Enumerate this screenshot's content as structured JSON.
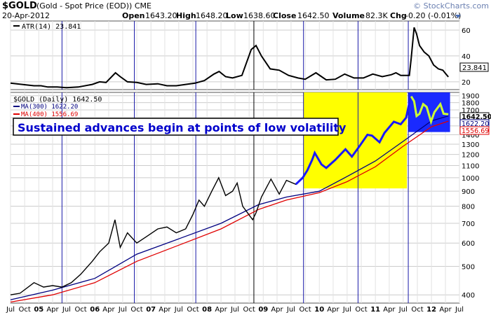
{
  "header": {
    "symbol": "$GOLD",
    "description": "(Gold - Spot Price (EOD)) CME",
    "watermark": "© StockCharts.com",
    "date": "20-Apr-2012",
    "quote": {
      "open_label": "Open",
      "open": "1643.20",
      "high_label": "High",
      "high": "1648.20",
      "low_label": "Low",
      "low": "1638.60",
      "close_label": "Close",
      "close": "1642.50",
      "volume_label": "Volume",
      "volume": "82.3K",
      "chg_label": "Chg",
      "chg": "-0.20 (-0.01%)"
    }
  },
  "annotation": "Sustained advances begin at points of low volatility",
  "colors": {
    "price": "#000000",
    "up_candle": "#000000",
    "down_candle": "#cc0000",
    "highlight_price": "#1a1aff",
    "highlight_price_late": "#ccff33",
    "ma300": "#000080",
    "ma400": "#e00000",
    "yellow_box": "#ffff00",
    "blue_box": "#1a2aff",
    "vertical_lines": "#1a1aa8",
    "grid": "#cccccc",
    "annotation_text": "#0000cc",
    "atr_line": "#000000"
  },
  "chart_data": [
    {
      "type": "line",
      "panel": "upper",
      "legend": "ATR(14) 23.841",
      "last_value_tag": "23.841",
      "ylim": [
        14,
        67
      ],
      "yticks": [
        20,
        40,
        60
      ],
      "series": [
        {
          "name": "ATR(14)",
          "x": [
            "2004-07-01",
            "2004-09-15",
            "2004-12-01",
            "2005-01-15",
            "2005-03-01",
            "2005-05-01",
            "2005-07-01",
            "2005-09-15",
            "2005-12-15",
            "2006-02-01",
            "2006-03-15",
            "2006-05-15",
            "2006-06-15",
            "2006-08-01",
            "2006-10-01",
            "2006-12-01",
            "2007-02-15",
            "2007-04-15",
            "2007-06-15",
            "2007-08-15",
            "2007-10-15",
            "2007-12-15",
            "2008-02-15",
            "2008-03-20",
            "2008-05-01",
            "2008-06-15",
            "2008-08-15",
            "2008-10-15",
            "2008-11-15",
            "2008-12-20",
            "2009-02-15",
            "2009-04-15",
            "2009-06-15",
            "2009-08-15",
            "2009-10-01",
            "2009-12-10",
            "2010-02-15",
            "2010-04-15",
            "2010-06-15",
            "2010-08-15",
            "2010-10-15",
            "2010-12-15",
            "2011-02-15",
            "2011-04-15",
            "2011-05-15",
            "2011-06-15",
            "2011-08-10",
            "2011-08-22",
            "2011-09-10",
            "2011-09-26",
            "2011-10-15",
            "2011-11-15",
            "2011-12-15",
            "2012-01-15",
            "2012-02-15",
            "2012-03-15",
            "2012-04-20"
          ],
          "values": [
            19,
            18,
            17,
            17,
            16,
            16,
            15.5,
            16,
            18,
            20,
            19.5,
            27,
            24,
            20,
            19.5,
            18,
            18.5,
            17,
            17,
            18,
            19,
            21,
            26,
            28,
            24,
            23,
            25,
            45,
            48,
            40,
            30,
            29,
            25,
            23,
            22,
            27,
            21.5,
            22,
            26,
            23,
            23,
            26,
            24,
            25.5,
            27,
            25,
            25,
            38,
            62,
            57,
            48,
            43,
            40,
            33,
            30,
            29,
            23.8
          ]
        }
      ]
    },
    {
      "type": "line",
      "panel": "lower",
      "title": "$GOLD (Daily) 1642.50",
      "scale": "log",
      "ylim": [
        375,
        1950
      ],
      "yticks": [
        400,
        500,
        600,
        700,
        800,
        900,
        1000,
        1100,
        1200,
        1300,
        1400,
        1500,
        1600,
        1700,
        1800,
        1900
      ],
      "x_tick_labels": [
        "Jul",
        "Oct",
        "05",
        "Apr",
        "Jul",
        "Oct",
        "06",
        "Apr",
        "Jul",
        "Oct",
        "07",
        "Apr",
        "Jul",
        "Oct",
        "08",
        "Apr",
        "Jul",
        "Oct",
        "09",
        "Apr",
        "Jul",
        "Oct",
        "10",
        "Apr",
        "Jul",
        "Oct",
        "11",
        "Apr",
        "Jul",
        "Oct",
        "12",
        "Apr",
        "Jul"
      ],
      "xlim": [
        "2004-07-01",
        "2012-07-01"
      ],
      "value_tags": [
        "1642.50",
        "1622.20",
        "1556.69"
      ],
      "series": [
        {
          "name": "$GOLD",
          "x": [
            "2004-07-01",
            "2004-09-01",
            "2004-12-01",
            "2005-02-01",
            "2005-04-01",
            "2005-06-01",
            "2005-08-01",
            "2005-10-01",
            "2005-12-15",
            "2006-02-01",
            "2006-04-01",
            "2006-05-12",
            "2006-06-15",
            "2006-08-01",
            "2006-10-01",
            "2006-12-01",
            "2007-02-15",
            "2007-04-15",
            "2007-06-15",
            "2007-08-15",
            "2007-10-01",
            "2007-11-10",
            "2007-12-15",
            "2008-02-01",
            "2008-03-17",
            "2008-05-01",
            "2008-06-15",
            "2008-07-15",
            "2008-08-20",
            "2008-10-24",
            "2008-11-15",
            "2008-12-20",
            "2009-02-20",
            "2009-04-15",
            "2009-06-01",
            "2009-08-01",
            "2009-09-15",
            "2009-10-15",
            "2009-11-15",
            "2009-12-02",
            "2010-01-15",
            "2010-02-15",
            "2010-04-15",
            "2010-06-20",
            "2010-08-01",
            "2010-09-15",
            "2010-11-10",
            "2010-12-10",
            "2011-01-28",
            "2011-03-01",
            "2011-05-01",
            "2011-06-15",
            "2011-07-20",
            "2011-08-10",
            "2011-08-22",
            "2011-09-10",
            "2011-09-26",
            "2011-10-15",
            "2011-11-08",
            "2011-12-01",
            "2011-12-29",
            "2012-01-20",
            "2012-02-28",
            "2012-03-20",
            "2012-04-20"
          ],
          "values": [
            400,
            405,
            440,
            425,
            430,
            425,
            440,
            470,
            520,
            560,
            600,
            720,
            580,
            650,
            600,
            630,
            670,
            680,
            650,
            670,
            750,
            840,
            800,
            900,
            1000,
            870,
            900,
            960,
            800,
            720,
            760,
            860,
            990,
            880,
            980,
            950,
            1000,
            1060,
            1150,
            1215,
            1110,
            1080,
            1150,
            1250,
            1180,
            1270,
            1400,
            1390,
            1320,
            1420,
            1550,
            1520,
            1600,
            1800,
            1890,
            1820,
            1620,
            1650,
            1780,
            1740,
            1550,
            1670,
            1780,
            1650,
            1642.5
          ]
        },
        {
          "name": "MA(300) 1622.20",
          "x": [
            "2004-07-01",
            "2005-04-01",
            "2006-01-01",
            "2006-10-01",
            "2007-07-01",
            "2008-04-01",
            "2008-12-01",
            "2009-06-01",
            "2010-01-01",
            "2010-07-01",
            "2011-01-01",
            "2011-07-01",
            "2012-01-01",
            "2012-04-20"
          ],
          "values": [
            385,
            415,
            455,
            550,
            620,
            700,
            810,
            860,
            900,
            1010,
            1140,
            1330,
            1560,
            1622.2
          ]
        },
        {
          "name": "MA(400) 1556.69",
          "x": [
            "2004-07-01",
            "2005-04-01",
            "2006-01-01",
            "2006-10-01",
            "2007-07-01",
            "2008-04-01",
            "2008-12-01",
            "2009-06-01",
            "2010-01-01",
            "2010-07-01",
            "2011-01-01",
            "2011-07-01",
            "2012-01-01",
            "2012-04-20"
          ],
          "values": [
            378,
            400,
            440,
            520,
            590,
            670,
            780,
            840,
            890,
            970,
            1090,
            1280,
            1490,
            1556.69
          ]
        }
      ]
    }
  ]
}
